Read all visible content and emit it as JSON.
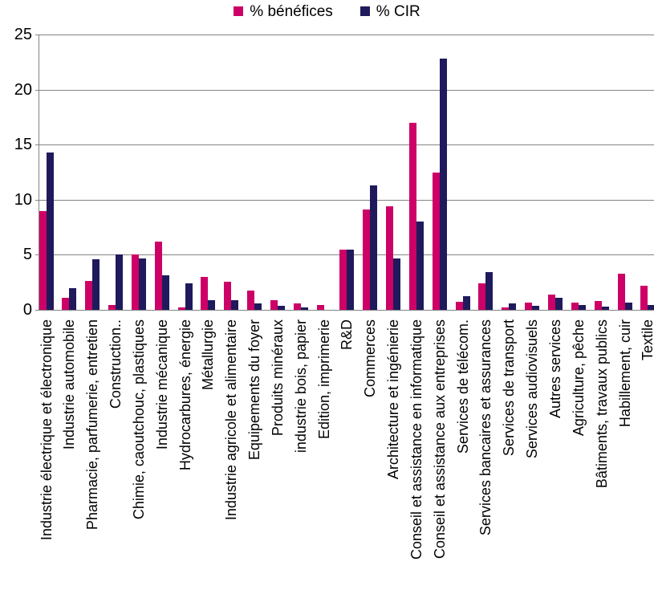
{
  "chart_data": {
    "type": "bar",
    "title": "",
    "legend_position": "top",
    "grid": true,
    "ylim": [
      0,
      25
    ],
    "yticks": [
      0,
      5,
      10,
      15,
      20,
      25
    ],
    "gridline_color": "#848484",
    "categories": [
      "Industrie électrique et électronique",
      "Industrie automobile",
      "Pharmacie, parfumerie, entretien",
      "Construction..",
      "Chimie, caoutchouc, plastiques",
      "Industrie mécanique",
      "Hydrocarbures, énergie",
      "Métallurgie",
      "Industrie agricole et alimentaire",
      "Equipements du foyer",
      "Produits minéraux",
      "industrie bois, papier",
      "Edition, imprimerie",
      "R&D",
      "Commerces",
      "Architecture et ingénierie",
      "Conseil et assistance en informatique",
      "Conseil et assistance aux entreprises",
      "Services de télécom.",
      "Services bancaires et assurances",
      "Services de transport",
      "Services audiovisuels",
      "Autres services",
      "Agriculture, pêche",
      "Bâtiments, travaux publics",
      "Habillement, cuir",
      "Textile"
    ],
    "series": [
      {
        "name": "% bénéfices",
        "color": "#CC0066",
        "values": [
          9.0,
          1.1,
          2.6,
          0.45,
          5.0,
          6.2,
          0.2,
          3.0,
          2.55,
          1.75,
          0.9,
          0.6,
          0.45,
          5.5,
          9.1,
          9.4,
          17.0,
          12.5,
          0.75,
          2.4,
          0.2,
          0.65,
          1.35,
          0.65,
          0.8,
          3.3,
          2.2
        ]
      },
      {
        "name": "% CIR",
        "color": "#1F1A5C",
        "values": [
          14.3,
          2.0,
          4.6,
          5.0,
          4.65,
          3.1,
          2.4,
          0.9,
          0.85,
          0.6,
          0.35,
          0.25,
          0,
          5.5,
          11.3,
          4.65,
          8.05,
          22.8,
          1.25,
          3.45,
          0.55,
          0.35,
          1.1,
          0.45,
          0.3,
          0.65,
          0.45
        ]
      }
    ]
  }
}
